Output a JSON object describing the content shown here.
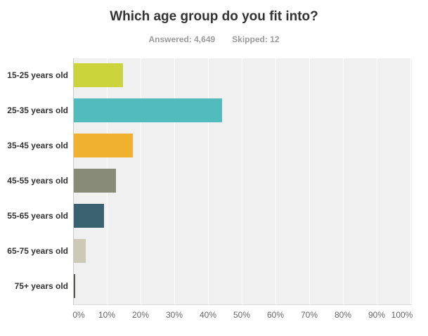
{
  "header": {
    "title": "Which age group do you fit into?",
    "answered_text": "Answered: 4,649",
    "skipped_text": "Skipped: 12"
  },
  "chart_data": {
    "type": "bar",
    "orientation": "horizontal",
    "title": "Which age group do you fit into?",
    "answered": 4649,
    "skipped": 12,
    "categories": [
      "15-25 years old",
      "25-35 years old",
      "35-45 years old",
      "45-55 years old",
      "55-65 years old",
      "65-75 years old",
      "75+ years old"
    ],
    "values": [
      14.6,
      44.0,
      17.5,
      12.5,
      9.0,
      3.5,
      0.5
    ],
    "values_estimated_from_bar_lengths": true,
    "value_unit": "percent",
    "bar_colors": [
      "#CCD43C",
      "#52BBBE",
      "#F0B030",
      "#898B79",
      "#3A6170",
      "#CCC9B7",
      "#55564E"
    ],
    "x_tick_labels": [
      "0%",
      "10%",
      "20%",
      "30%",
      "40%",
      "50%",
      "60%",
      "70%",
      "80%",
      "90%",
      "100%"
    ],
    "xlim": [
      0,
      100
    ],
    "grid": true,
    "legend": "none",
    "plot_background": "#f0f0f0",
    "gridline_color": "#ffffff",
    "title_color": "#333333",
    "subtitle_color": "#9b9b9b",
    "axis_label_color": "#666666"
  }
}
